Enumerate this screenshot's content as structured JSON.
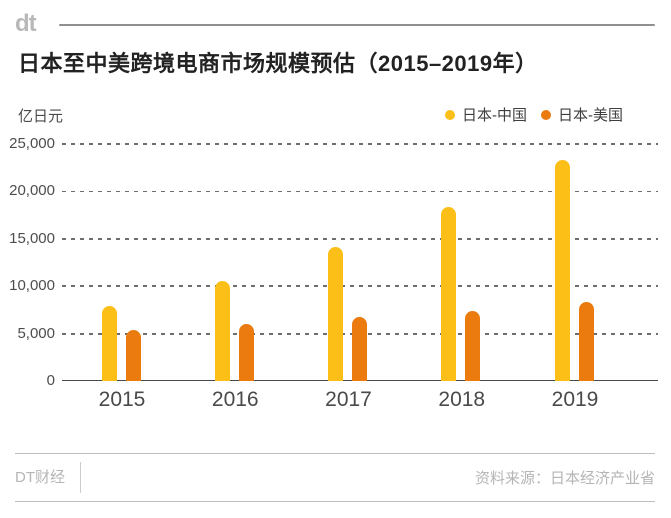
{
  "header": {
    "logo": "dt"
  },
  "title": "日本至中美跨境电商市场规模预估（2015–2019年）",
  "chart_data": {
    "type": "bar",
    "title": "日本至中美跨境电商市场规模预估（2015–2019年）",
    "unit_label": "亿日元",
    "categories": [
      "2015",
      "2016",
      "2017",
      "2018",
      "2019"
    ],
    "series": [
      {
        "name": "日本-中国",
        "color": "#FBBF17",
        "values": [
          7900,
          10600,
          14100,
          18400,
          23300
        ]
      },
      {
        "name": "日本-美国",
        "color": "#EB7A0F",
        "values": [
          5400,
          6000,
          6800,
          7400,
          8300
        ]
      }
    ],
    "ylim": [
      0,
      25000
    ],
    "yticks": [
      0,
      5000,
      10000,
      15000,
      20000,
      25000
    ],
    "ytick_labels": [
      "0",
      "5,000",
      "10,000",
      "15,000",
      "20,000",
      "25,000"
    ],
    "grid": "horizontal-dashed",
    "legend_position": "top-right"
  },
  "footer": {
    "brand": "DT财经",
    "source": "资料来源：日本经济产业省"
  },
  "colors": {
    "japan_china": "#FBBF17",
    "japan_us": "#EB7A0F",
    "title_text": "#222222",
    "axis_text": "#4a4a4a",
    "muted_gray": "#b5b5b5"
  }
}
